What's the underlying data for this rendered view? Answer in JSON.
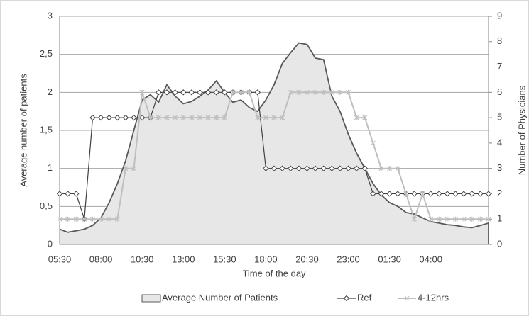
{
  "chart_data": {
    "type": "line",
    "x_label": "Time of the day",
    "y_label": "Average number of patients",
    "y2_label": "Number of Physicians",
    "categories": [
      "05:30",
      null,
      null,
      null,
      null,
      "08:00",
      null,
      null,
      null,
      null,
      "10:30",
      null,
      null,
      null,
      null,
      "13:00",
      null,
      null,
      null,
      null,
      "15:30",
      null,
      null,
      null,
      null,
      "18:00",
      null,
      null,
      null,
      null,
      "20:30",
      null,
      null,
      null,
      null,
      "23:00",
      null,
      null,
      null,
      null,
      "01:30",
      null,
      null,
      null,
      null,
      "04:00",
      null,
      null,
      null,
      null,
      null,
      null,
      null
    ],
    "series": [
      {
        "name": "Average Number of Patients",
        "type": "area",
        "color": "#595959",
        "fill": "#e7e7e7",
        "values": [
          0.2,
          0.16,
          0.18,
          0.2,
          0.25,
          0.35,
          0.55,
          0.8,
          1.1,
          1.5,
          1.9,
          1.97,
          1.87,
          2.1,
          1.95,
          1.85,
          1.88,
          1.95,
          2.03,
          2.15,
          2.0,
          1.87,
          1.9,
          1.8,
          1.75,
          1.9,
          2.1,
          2.38,
          2.52,
          2.65,
          2.63,
          2.45,
          2.43,
          1.95,
          1.75,
          1.45,
          1.2,
          1.0,
          0.8,
          0.65,
          0.55,
          0.5,
          0.42,
          0.4,
          0.35,
          0.3,
          0.28,
          0.26,
          0.25,
          0.23,
          0.22,
          0.25,
          0.28
        ]
      },
      {
        "name": "Ref",
        "axis": "y2",
        "marker": "diamond",
        "color": "#404040",
        "values": [
          2,
          2,
          2,
          1,
          5,
          5,
          5,
          5,
          5,
          5,
          5,
          5,
          6,
          6,
          6,
          6,
          6,
          6,
          6,
          6,
          6,
          6,
          6,
          6,
          6,
          3,
          3,
          3,
          3,
          3,
          3,
          3,
          3,
          3,
          3,
          3,
          3,
          3,
          2,
          2,
          2,
          2,
          2,
          2,
          2,
          2,
          2,
          2,
          2,
          2,
          2,
          2,
          2
        ]
      },
      {
        "name": "4-12hrs",
        "axis": "y2",
        "marker": "star",
        "color": "#bfbfbf",
        "values": [
          1,
          1,
          1,
          1,
          1,
          1,
          1,
          1,
          3,
          3,
          6,
          5,
          5,
          5,
          5,
          5,
          5,
          5,
          5,
          5,
          5,
          6,
          6,
          6,
          5,
          5,
          5,
          5,
          6,
          6,
          6,
          6,
          6,
          6,
          6,
          6,
          5,
          5,
          4,
          3,
          3,
          3,
          2,
          1,
          2,
          1,
          1,
          1,
          1,
          1,
          1,
          1,
          1
        ]
      }
    ],
    "ylim": [
      0,
      3
    ],
    "yticks": [
      0,
      {
        "value": 0.5,
        "label": "0,5"
      },
      1,
      {
        "value": 1.5,
        "label": "1,5"
      },
      2,
      {
        "value": 2.5,
        "label": "2,5"
      },
      3
    ],
    "y2lim": [
      0,
      9
    ],
    "y2ticks": [
      0,
      1,
      2,
      3,
      4,
      5,
      6,
      7,
      8,
      9
    ],
    "grid": true,
    "legend": "bottom"
  }
}
